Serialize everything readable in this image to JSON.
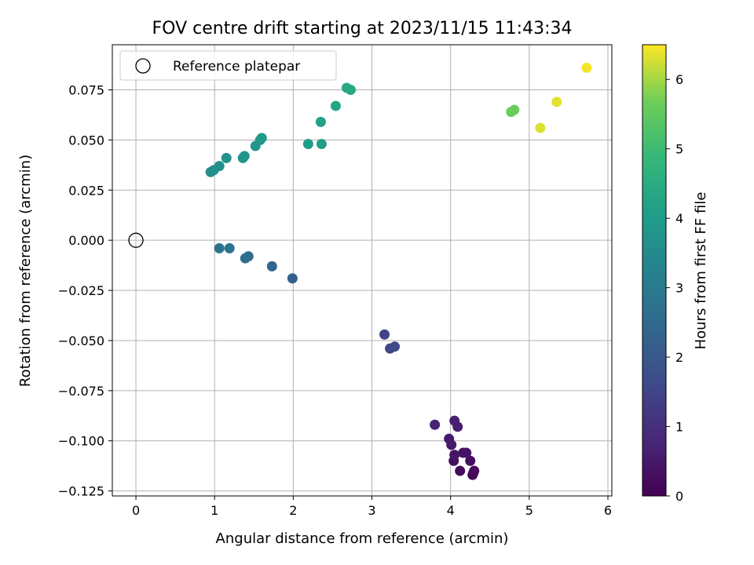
{
  "chart_data": {
    "type": "scatter",
    "title": "FOV centre drift starting at 2023/11/15 11:43:34",
    "xlabel": "Angular distance from reference (arcmin)",
    "ylabel": "Rotation from reference (arcmin)",
    "xlim": [
      -0.3,
      6.05
    ],
    "ylim": [
      -0.1275,
      0.0975
    ],
    "xticks": [
      0,
      1,
      2,
      3,
      4,
      5,
      6
    ],
    "xtick_labels": [
      "0",
      "1",
      "2",
      "3",
      "4",
      "5",
      "6"
    ],
    "yticks": [
      -0.125,
      -0.1,
      -0.075,
      -0.05,
      -0.025,
      0.0,
      0.025,
      0.05,
      0.075
    ],
    "ytick_labels": [
      "−0.125",
      "−0.100",
      "−0.075",
      "−0.050",
      "−0.025",
      "0.000",
      "0.025",
      "0.050",
      "0.075"
    ],
    "grid": true,
    "legend": {
      "position": "top-left",
      "entries": [
        "Reference platepar"
      ]
    },
    "reference_point": {
      "x": 0,
      "y": 0
    },
    "colorbar": {
      "label": "Hours from first FF file",
      "range": [
        0,
        6.5
      ],
      "ticks": [
        0,
        1,
        2,
        3,
        4,
        5,
        6
      ],
      "tick_labels": [
        "0",
        "1",
        "2",
        "3",
        "4",
        "5",
        "6"
      ],
      "colormap": "viridis"
    },
    "points": [
      {
        "x": 4.28,
        "y": -0.117,
        "c": 0.05
      },
      {
        "x": 4.29,
        "y": -0.116,
        "c": 0.1
      },
      {
        "x": 4.3,
        "y": -0.115,
        "c": 0.15
      },
      {
        "x": 4.12,
        "y": -0.115,
        "c": 0.2
      },
      {
        "x": 4.25,
        "y": -0.11,
        "c": 0.25
      },
      {
        "x": 4.04,
        "y": -0.11,
        "c": 0.3
      },
      {
        "x": 4.16,
        "y": -0.106,
        "c": 0.35
      },
      {
        "x": 4.2,
        "y": -0.106,
        "c": 0.4
      },
      {
        "x": 4.05,
        "y": -0.107,
        "c": 0.45
      },
      {
        "x": 4.01,
        "y": -0.102,
        "c": 0.5
      },
      {
        "x": 3.98,
        "y": -0.099,
        "c": 0.55
      },
      {
        "x": 4.09,
        "y": -0.093,
        "c": 0.6
      },
      {
        "x": 4.05,
        "y": -0.09,
        "c": 0.65
      },
      {
        "x": 3.8,
        "y": -0.092,
        "c": 0.7
      },
      {
        "x": 3.16,
        "y": -0.047,
        "c": 1.5
      },
      {
        "x": 3.23,
        "y": -0.054,
        "c": 1.55
      },
      {
        "x": 3.29,
        "y": -0.053,
        "c": 1.6
      },
      {
        "x": 1.99,
        "y": -0.019,
        "c": 2.2
      },
      {
        "x": 1.73,
        "y": -0.013,
        "c": 2.35
      },
      {
        "x": 1.43,
        "y": -0.008,
        "c": 2.55
      },
      {
        "x": 1.39,
        "y": -0.009,
        "c": 2.6
      },
      {
        "x": 1.19,
        "y": -0.004,
        "c": 2.75
      },
      {
        "x": 1.06,
        "y": -0.004,
        "c": 2.8
      },
      {
        "x": 0.95,
        "y": 0.034,
        "c": 3.6
      },
      {
        "x": 0.99,
        "y": 0.035,
        "c": 3.62
      },
      {
        "x": 1.06,
        "y": 0.037,
        "c": 3.65
      },
      {
        "x": 1.15,
        "y": 0.041,
        "c": 3.7
      },
      {
        "x": 1.36,
        "y": 0.041,
        "c": 3.75
      },
      {
        "x": 1.38,
        "y": 0.042,
        "c": 3.78
      },
      {
        "x": 1.52,
        "y": 0.047,
        "c": 3.85
      },
      {
        "x": 1.58,
        "y": 0.05,
        "c": 3.9
      },
      {
        "x": 1.6,
        "y": 0.051,
        "c": 3.92
      },
      {
        "x": 2.19,
        "y": 0.048,
        "c": 4.05
      },
      {
        "x": 2.36,
        "y": 0.048,
        "c": 4.1
      },
      {
        "x": 2.35,
        "y": 0.059,
        "c": 4.15
      },
      {
        "x": 2.54,
        "y": 0.067,
        "c": 4.3
      },
      {
        "x": 2.68,
        "y": 0.076,
        "c": 4.35
      },
      {
        "x": 2.73,
        "y": 0.075,
        "c": 4.4
      },
      {
        "x": 4.77,
        "y": 0.064,
        "c": 5.6
      },
      {
        "x": 4.81,
        "y": 0.065,
        "c": 5.65
      },
      {
        "x": 5.14,
        "y": 0.056,
        "c": 6.3
      },
      {
        "x": 5.35,
        "y": 0.069,
        "c": 6.35
      },
      {
        "x": 5.73,
        "y": 0.086,
        "c": 6.45
      }
    ]
  }
}
